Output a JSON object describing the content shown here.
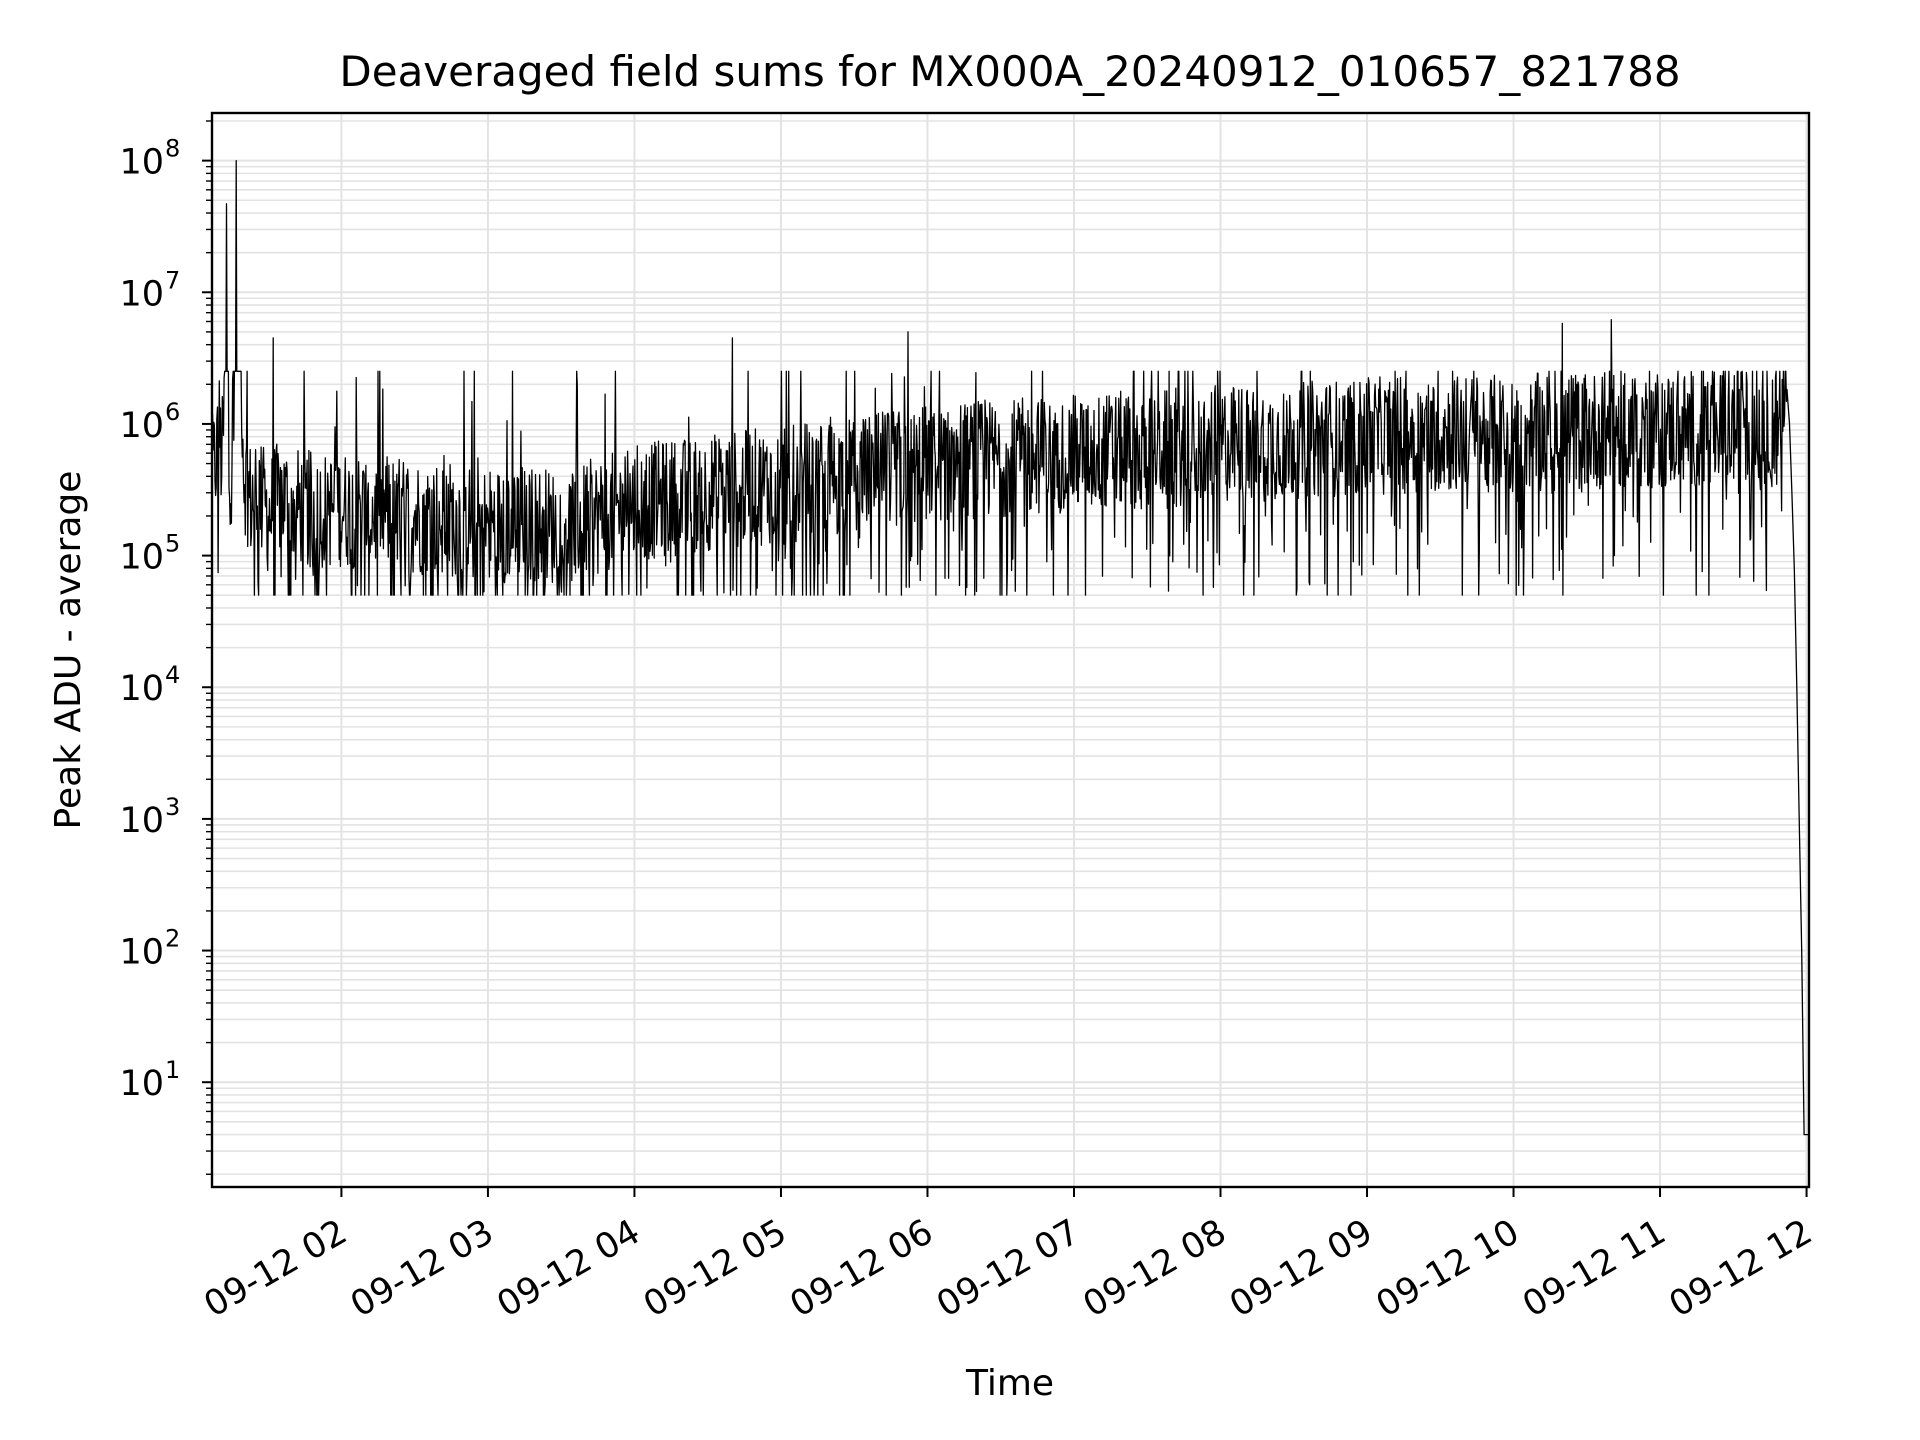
{
  "chart_data": {
    "type": "line",
    "title": "Deaveraged field sums for MX000A_20240912_010657_821788",
    "xlabel": "Time",
    "ylabel": "Peak ADU - average",
    "yscale": "log",
    "xlim": [
      "2024-09-12 01:07",
      "2024-09-12 12:01"
    ],
    "ylim": [
      1.6,
      230000000
    ],
    "grid": true,
    "line_color": "#000000",
    "grid_color": "#e3e3e3",
    "x_ticks": [
      {
        "value": "2024-09-12 02:00",
        "label": "09-12 02"
      },
      {
        "value": "2024-09-12 03:00",
        "label": "09-12 03"
      },
      {
        "value": "2024-09-12 04:00",
        "label": "09-12 04"
      },
      {
        "value": "2024-09-12 05:00",
        "label": "09-12 05"
      },
      {
        "value": "2024-09-12 06:00",
        "label": "09-12 06"
      },
      {
        "value": "2024-09-12 07:00",
        "label": "09-12 07"
      },
      {
        "value": "2024-09-12 08:00",
        "label": "09-12 08"
      },
      {
        "value": "2024-09-12 09:00",
        "label": "09-12 09"
      },
      {
        "value": "2024-09-12 10:00",
        "label": "09-12 10"
      },
      {
        "value": "2024-09-12 11:00",
        "label": "09-12 11"
      },
      {
        "value": "2024-09-12 12:00",
        "label": "09-12 12"
      }
    ],
    "y_ticks": [
      {
        "value": 10,
        "base": "10",
        "exp": "1"
      },
      {
        "value": 100,
        "base": "10",
        "exp": "2"
      },
      {
        "value": 1000,
        "base": "10",
        "exp": "3"
      },
      {
        "value": 10000,
        "base": "10",
        "exp": "4"
      },
      {
        "value": 100000,
        "base": "10",
        "exp": "5"
      },
      {
        "value": 1000000,
        "base": "10",
        "exp": "6"
      },
      {
        "value": 10000000,
        "base": "10",
        "exp": "7"
      },
      {
        "value": 100000000,
        "base": "10",
        "exp": "8"
      }
    ],
    "series": [
      {
        "x": [
          "2024-09-12 01:07",
          "2024-09-12 01:09",
          "2024-09-12 01:10",
          "2024-09-12 01:11",
          "2024-09-12 01:12",
          "2024-09-12 01:13",
          "2024-09-12 01:14",
          "2024-09-12 01:15",
          "2024-09-12 01:17",
          "2024-09-12 01:20",
          "2024-09-12 01:23",
          "2024-09-12 01:25",
          "2024-09-12 01:30",
          "2024-09-12 01:35",
          "2024-09-12 01:40",
          "2024-09-12 01:50",
          "2024-09-12 02:00",
          "2024-09-12 02:15",
          "2024-09-12 02:30",
          "2024-09-12 02:45",
          "2024-09-12 03:00",
          "2024-09-12 03:15",
          "2024-09-12 03:30",
          "2024-09-12 03:45",
          "2024-09-12 04:00",
          "2024-09-12 04:30",
          "2024-09-12 05:00",
          "2024-09-12 05:30",
          "2024-09-12 06:00",
          "2024-09-12 06:30",
          "2024-09-12 07:00",
          "2024-09-12 07:30",
          "2024-09-12 08:00",
          "2024-09-12 08:30",
          "2024-09-12 09:00",
          "2024-09-12 09:30",
          "2024-09-12 10:00",
          "2024-09-12 10:30",
          "2024-09-12 11:00",
          "2024-09-12 11:30",
          "2024-09-12 11:45",
          "2024-09-12 11:49",
          "2024-09-12 11:51",
          "2024-09-12 11:52",
          "2024-09-12 11:53",
          "2024-09-12 11:54",
          "2024-09-12 11:55",
          "2024-09-12 11:56",
          "2024-09-12 11:57",
          "2024-09-12 11:58",
          "2024-09-12 11:59",
          "2024-09-12 12:00",
          "2024-09-12 12:01"
        ],
        "y": [
          400000,
          600000,
          900000,
          500000,
          1200000,
          47000000,
          700000,
          300000,
          100000000,
          450000,
          250000,
          350000,
          200000,
          280000,
          240000,
          220000,
          230000,
          210000,
          200000,
          190000,
          170000,
          180000,
          160000,
          200000,
          250000,
          300000,
          350000,
          400000,
          500000,
          550000,
          600000,
          650000,
          700000,
          750000,
          800000,
          850000,
          850000,
          900000,
          900000,
          950000,
          1000000,
          1200000,
          1700000,
          1500000,
          1000000,
          300000,
          80000,
          10000,
          1000,
          100,
          4,
          4,
          4
        ]
      }
    ],
    "noise": {
      "description": "dense vertical fluctuations between roughly 5e4 and 6e6",
      "spike_points": [
        {
          "x": "2024-09-12 01:32",
          "y": 4500000
        },
        {
          "x": "2024-09-12 04:40",
          "y": 4500000
        },
        {
          "x": "2024-09-12 05:52",
          "y": 5000000
        },
        {
          "x": "2024-09-12 10:20",
          "y": 5800000
        },
        {
          "x": "2024-09-12 10:40",
          "y": 6200000
        }
      ]
    }
  }
}
